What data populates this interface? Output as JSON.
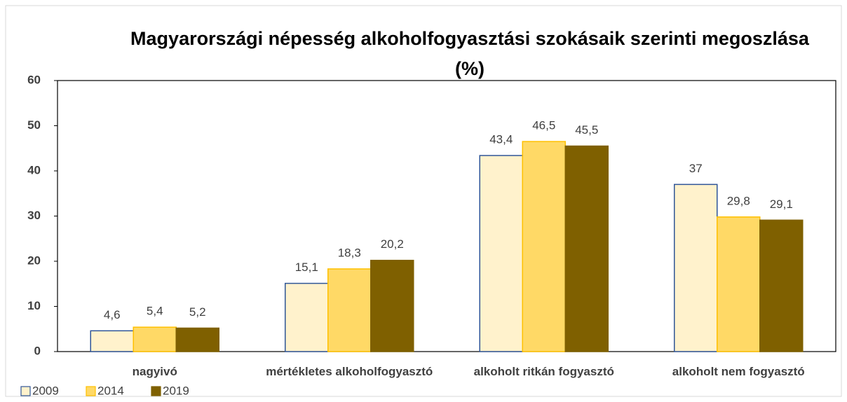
{
  "chart_data": {
    "type": "bar",
    "title": "Magyarországi népesség alkoholfogyasztási szokásaik szerinti megoszlása (%)",
    "categories": [
      "nagyivó",
      "mértékletes alkoholfogyasztó",
      "alkoholt ritkán fogyasztó",
      "alkoholt nem fogyasztó"
    ],
    "series": [
      {
        "name": "2009",
        "color": "#fff2cc",
        "stroke": "#2f5597",
        "values": [
          4.6,
          15.1,
          43.4,
          37
        ],
        "value_labels": [
          "4,6",
          "15,1",
          "43,4",
          "37"
        ]
      },
      {
        "name": "2014",
        "color": "#ffd966",
        "stroke": "#ffc000",
        "values": [
          5.4,
          18.3,
          46.5,
          29.8
        ],
        "value_labels": [
          "5,4",
          "18,3",
          "46,5",
          "29,8"
        ]
      },
      {
        "name": "2019",
        "color": "#7f6000",
        "stroke": "#7f6000",
        "values": [
          5.2,
          20.2,
          45.5,
          29.1
        ],
        "value_labels": [
          "5,2",
          "20,2",
          "45,5",
          "29,1"
        ]
      }
    ],
    "ylim": [
      0,
      60
    ],
    "yticks": [
      0,
      10,
      20,
      30,
      40,
      50,
      60
    ],
    "legend": "bottom-left"
  }
}
